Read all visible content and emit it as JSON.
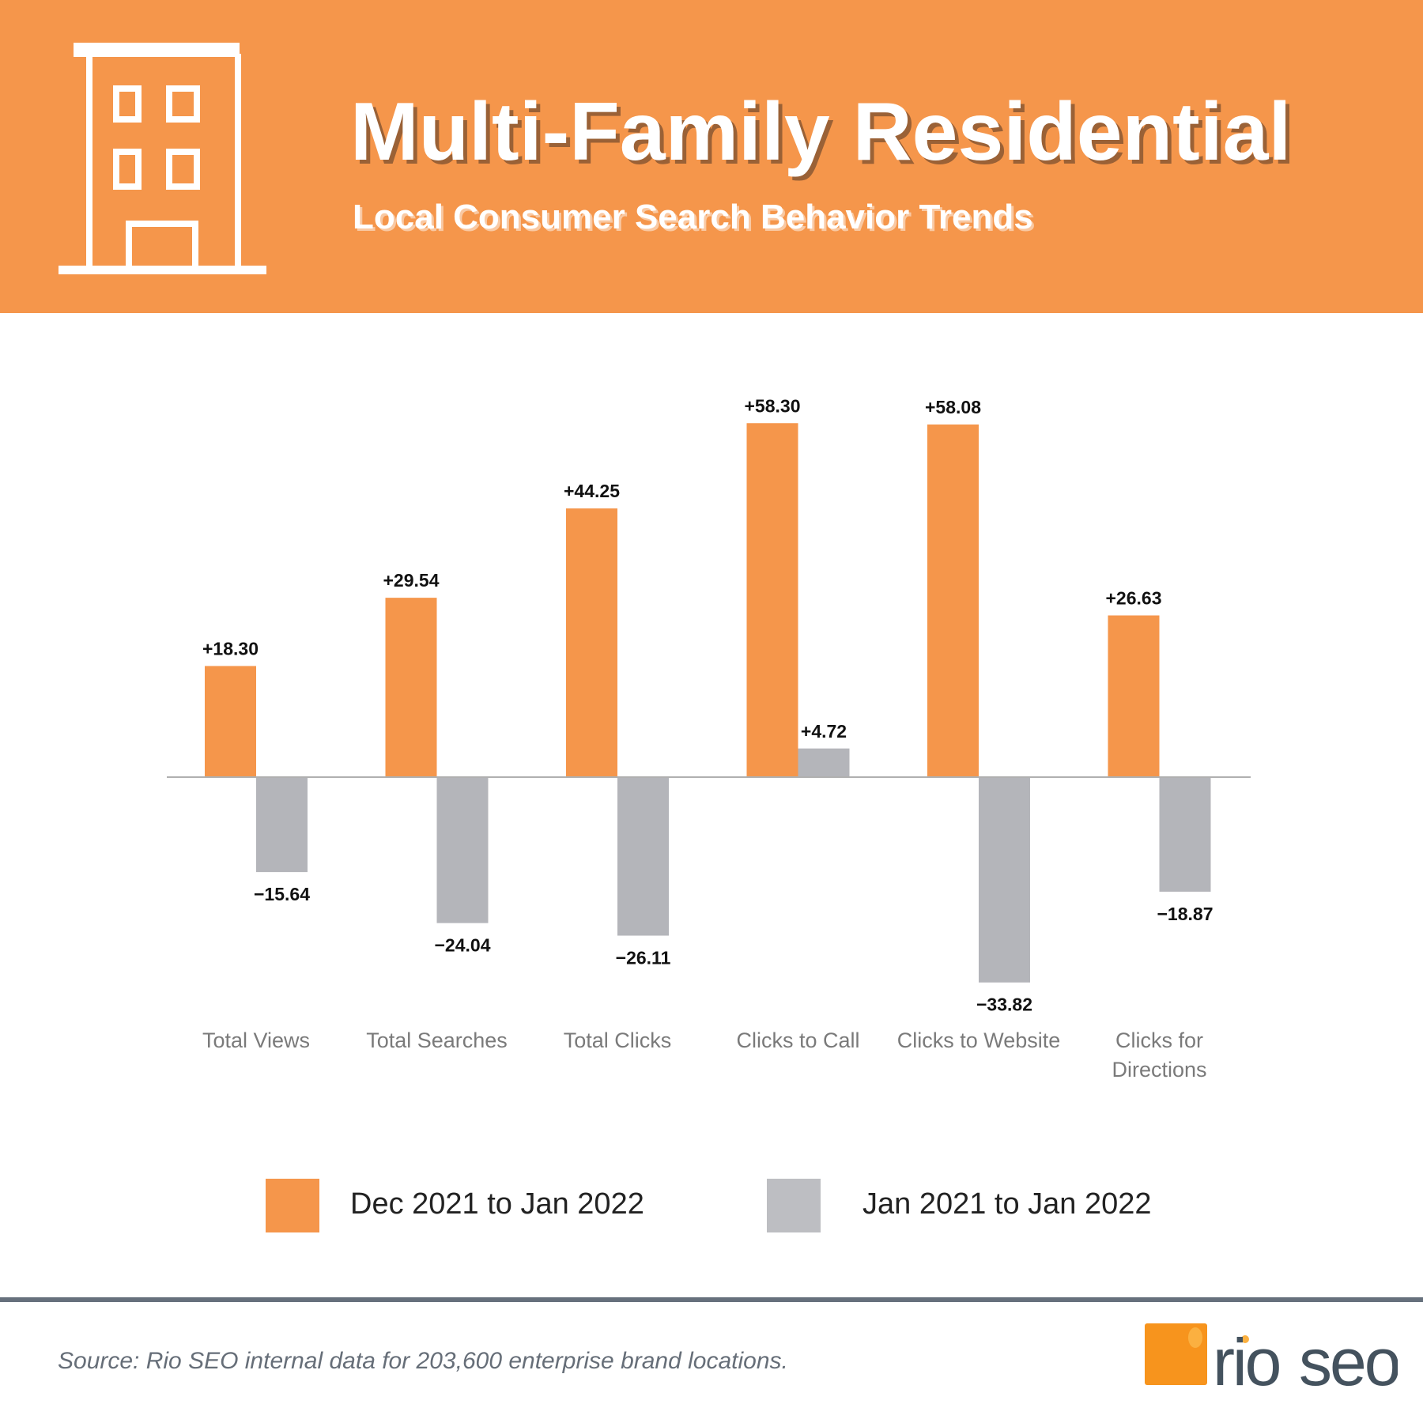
{
  "header": {
    "title": "Multi-Family Residential",
    "subtitle": "Local Consumer Search Behavior Trends",
    "icon": "building-icon",
    "background_color": "#f5964b"
  },
  "chart_data": {
    "type": "bar",
    "categories": [
      "Total Views",
      "Total Searches",
      "Total Clicks",
      "Clicks to Call",
      "Clicks to Website",
      "Clicks for Directions"
    ],
    "series": [
      {
        "name": "Dec 2021 to Jan 2022",
        "color": "#f5964b",
        "values": [
          18.3,
          29.54,
          44.25,
          58.3,
          58.08,
          26.63
        ],
        "labels": [
          "+18.30",
          "+29.54",
          "+44.25",
          "+58.30",
          "+58.08",
          "+26.63"
        ]
      },
      {
        "name": "Jan 2021 to Jan 2022",
        "color": "#b4b5ba",
        "values": [
          -15.64,
          -24.04,
          -26.11,
          4.72,
          -33.82,
          -18.87
        ],
        "labels": [
          "−15.64",
          "−24.04",
          "−26.11",
          "+4.72",
          "−33.82",
          "−18.87"
        ]
      }
    ],
    "grid": false,
    "legend_position": "bottom"
  },
  "legend": {
    "items": [
      {
        "label": "Dec 2021 to Jan 2022",
        "color": "#f5964b"
      },
      {
        "label": "Jan 2021 to Jan 2022",
        "color": "#bdbec2"
      }
    ]
  },
  "footer": {
    "source": "Source: Rio SEO internal data for 203,600 enterprise brand locations.",
    "logo_text": "rio seo"
  }
}
